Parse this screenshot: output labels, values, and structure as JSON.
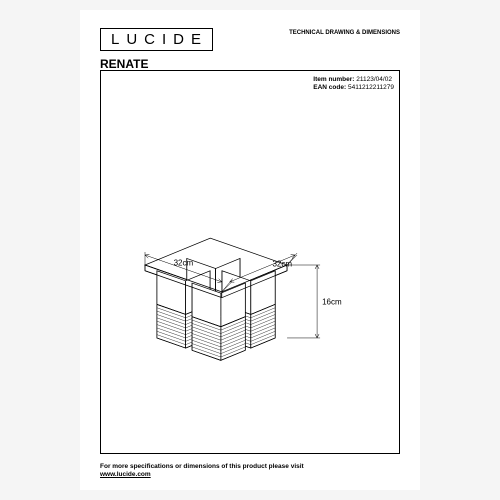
{
  "brand": "LUCIDE",
  "header_right": "TECHNICAL DRAWING & DIMENSIONS",
  "product_name": "RENATE",
  "meta": {
    "item_label": "Item number:",
    "item_value": "21123/04/02",
    "ean_label": "EAN code:",
    "ean_value": "5411212211279"
  },
  "dimensions": {
    "width_label": "32cm",
    "depth_label": "32cm",
    "height_label": "16cm"
  },
  "footer": {
    "line1": "For more specifications or dimensions of this product please visit",
    "url": "www.lucide.com"
  },
  "drawing": {
    "stroke": "#000000",
    "stroke_width": 0.7,
    "dim_stroke_width": 0.5,
    "hatch_spacing": 3,
    "font_size": 8,
    "font_family": "Arial"
  }
}
